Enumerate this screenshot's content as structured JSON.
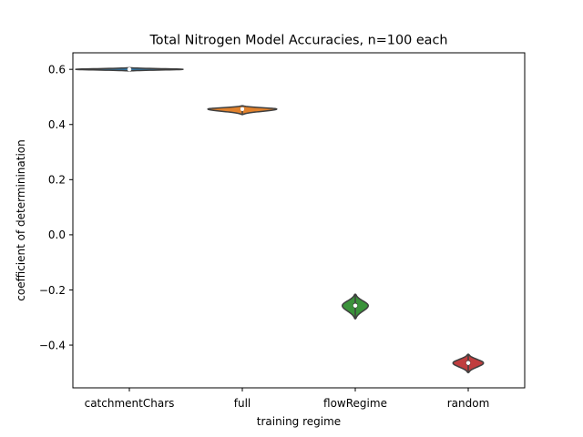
{
  "chart_data": {
    "type": "violin",
    "title": "Total Nitrogen Model Accuracies, n=100 each",
    "xlabel": "training regime",
    "ylabel": "coefficient of determinination",
    "categories": [
      "catchmentChars",
      "full",
      "flowRegime",
      "random"
    ],
    "series": [
      {
        "category": "catchmentChars",
        "color": "#3274a1",
        "min": 0.594,
        "q1": 0.598,
        "median": 0.6,
        "q3": 0.602,
        "max": 0.606,
        "halfwidth": 0.47
      },
      {
        "category": "full",
        "color": "#e1812c",
        "min": 0.436,
        "q1": 0.453,
        "median": 0.456,
        "q3": 0.459,
        "max": 0.468,
        "halfwidth": 0.3
      },
      {
        "category": "flowRegime",
        "color": "#3a923a",
        "min": -0.305,
        "q1": -0.264,
        "median": -0.257,
        "q3": -0.248,
        "max": -0.215,
        "halfwidth": 0.11
      },
      {
        "category": "random",
        "color": "#c03d3e",
        "min": -0.5,
        "q1": -0.472,
        "median": -0.465,
        "q3": -0.457,
        "max": -0.433,
        "halfwidth": 0.13
      }
    ],
    "yticks": [
      -0.4,
      -0.2,
      0.0,
      0.2,
      0.4,
      0.6
    ],
    "ytick_labels": [
      "−0.4",
      "−0.2",
      "0.0",
      "0.2",
      "0.4",
      "0.6"
    ],
    "ylim": [
      -0.555,
      0.66
    ],
    "grid": false,
    "legend": "none"
  }
}
